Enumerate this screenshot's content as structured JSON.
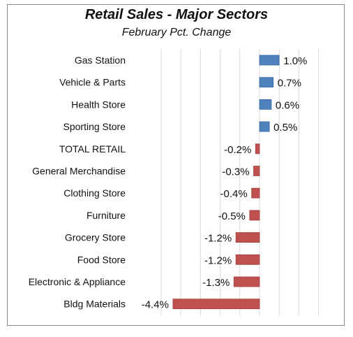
{
  "chart_data": {
    "type": "bar",
    "orientation": "horizontal",
    "title": "Retail Sales - Major Sectors",
    "subtitle": "February Pct. Change",
    "categories": [
      "Gas Station",
      "Vehicle & Parts",
      "Health Store",
      "Sporting Store",
      "TOTAL RETAIL",
      "General Merchandise",
      "Clothing Store",
      "Furniture",
      "Grocery Store",
      "Food Store",
      "Electronic & Appliance",
      "Bldg Materials"
    ],
    "values": [
      1.0,
      0.7,
      0.6,
      0.5,
      -0.2,
      -0.3,
      -0.4,
      -0.5,
      -1.2,
      -1.2,
      -1.3,
      -4.4
    ],
    "value_labels": [
      "1.0%",
      "0.7%",
      "0.6%",
      "0.5%",
      "-0.2%",
      "-0.3%",
      "-0.4%",
      "-0.5%",
      "-1.2%",
      "-1.2%",
      "-1.3%",
      "-4.4%"
    ],
    "xlim": [
      -5.0,
      3.5
    ],
    "grid": "vertical",
    "legend": "none",
    "colors": {
      "positive": "#4f81bd",
      "positive_border": "#3c6ca8",
      "negative": "#c0504d",
      "negative_border": "#a33f3c",
      "grid": "#d9d9d9"
    }
  }
}
